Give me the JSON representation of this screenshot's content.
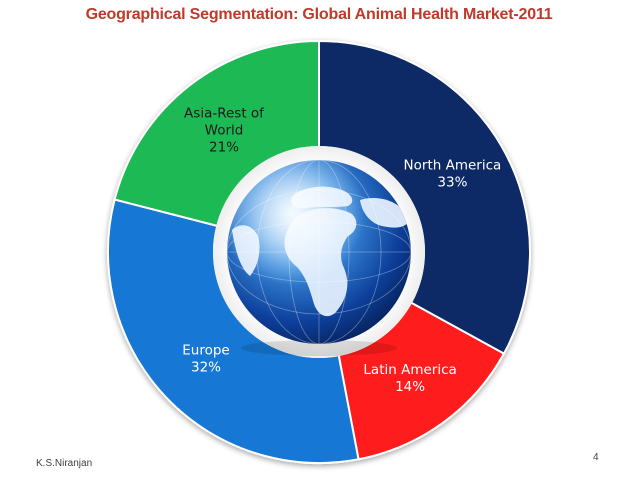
{
  "slide": {
    "author": "K.S.Niranjan",
    "page_number": "4"
  },
  "chart_data": {
    "type": "pie",
    "variant": "donut",
    "title": "Geographical Segmentation: Global Animal Health Market-2011",
    "categories": [
      "North America",
      "Latin America",
      "Europe",
      "Asia-Rest of World"
    ],
    "values": [
      33,
      14,
      32,
      21
    ],
    "unit": "%",
    "labels": [
      {
        "lines": [
          "North America",
          "33%"
        ],
        "color": "#ffffff"
      },
      {
        "lines": [
          "Latin America",
          "14%"
        ],
        "color": "#ffffff"
      },
      {
        "lines": [
          "Europe",
          "32%"
        ],
        "color": "#ffffff"
      },
      {
        "lines": [
          "Asia-Rest of",
          "World",
          "21%"
        ],
        "color": "#1a1a1a"
      }
    ],
    "colors": [
      "#0b2a66",
      "#ff1a1a",
      "#1478d4",
      "#1db954"
    ],
    "title_color": "#c0392b",
    "center_image": "globe",
    "legend": "none"
  }
}
